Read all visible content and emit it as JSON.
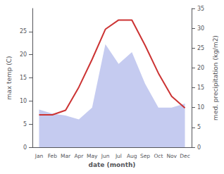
{
  "chart_data": {
    "type": "line",
    "xlabel": "date (month)",
    "ylabel": "max temp (C)",
    "y2label": "med. precipitation (kg/m2)",
    "categories": [
      "Jan",
      "Feb",
      "Mar",
      "Apr",
      "May",
      "Jun",
      "Jul",
      "Aug",
      "Sep",
      "Oct",
      "Nov",
      "Dec"
    ],
    "series": [
      {
        "type": "area",
        "color": "#c5cbf0",
        "axis": "y2",
        "values": [
          9.5,
          8.5,
          8.0,
          7.0,
          10.0,
          26.0,
          21.0,
          24.0,
          16.0,
          10.0,
          10.0,
          11.0
        ]
      },
      {
        "type": "line",
        "color": "#cc3333",
        "values": [
          7.0,
          7.0,
          8.0,
          13.0,
          19.0,
          25.5,
          27.5,
          27.5,
          22.0,
          16.0,
          11.0,
          8.5
        ]
      }
    ],
    "ylim": [
      0,
      30
    ],
    "yticks": [
      0,
      5,
      10,
      15,
      20,
      25
    ],
    "y2lim": [
      0,
      35
    ],
    "y2ticks": [
      0,
      5,
      10,
      15,
      20,
      25,
      30,
      35
    ],
    "grid": false
  }
}
